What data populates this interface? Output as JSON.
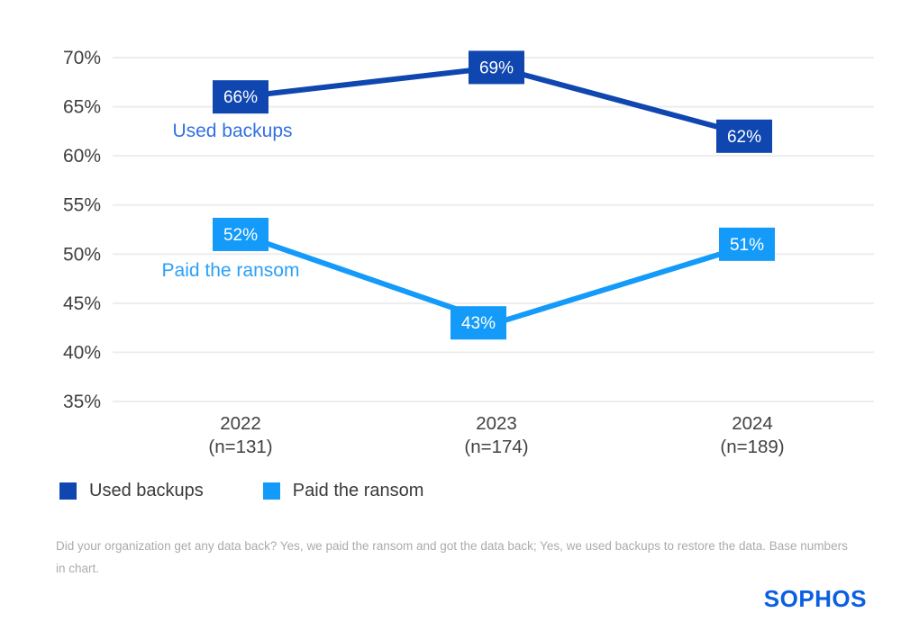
{
  "chart_data": {
    "type": "line",
    "categories": [
      "2022",
      "2023",
      "2024"
    ],
    "category_sublabels": [
      "(n=131)",
      "(n=174)",
      "(n=189)"
    ],
    "series": [
      {
        "name": "Used backups",
        "color": "#0f46af",
        "annotation_color": "#3371e3",
        "values": [
          66,
          69,
          62
        ],
        "data_labels": [
          "66%",
          "69%",
          "62%"
        ]
      },
      {
        "name": "Paid the ransom",
        "color": "#149bfa",
        "annotation_color": "#2aa0f7",
        "values": [
          52,
          43,
          51
        ],
        "data_labels": [
          "52%",
          "43%",
          "51%"
        ]
      }
    ],
    "y_ticks": [
      "70%",
      "65%",
      "60%",
      "55%",
      "50%",
      "45%",
      "40%",
      "35%"
    ],
    "ylim": [
      35,
      70
    ],
    "grid": true,
    "legend_position": "bottom-left",
    "data_label_style": "filled-box"
  },
  "colors": {
    "axis_text": "#414141",
    "gridline": "#ededed",
    "data_label_text": "#ffffff",
    "legend_text": "#3a3a3a",
    "footnote_text": "#ababab"
  },
  "footnote": "Did your organization get any data back? Yes, we paid the ransom and got the data back; Yes, we used backups to restore the data. Base numbers in chart.",
  "logo": {
    "text": "SOPHOS",
    "color": "#0a5fe3"
  }
}
